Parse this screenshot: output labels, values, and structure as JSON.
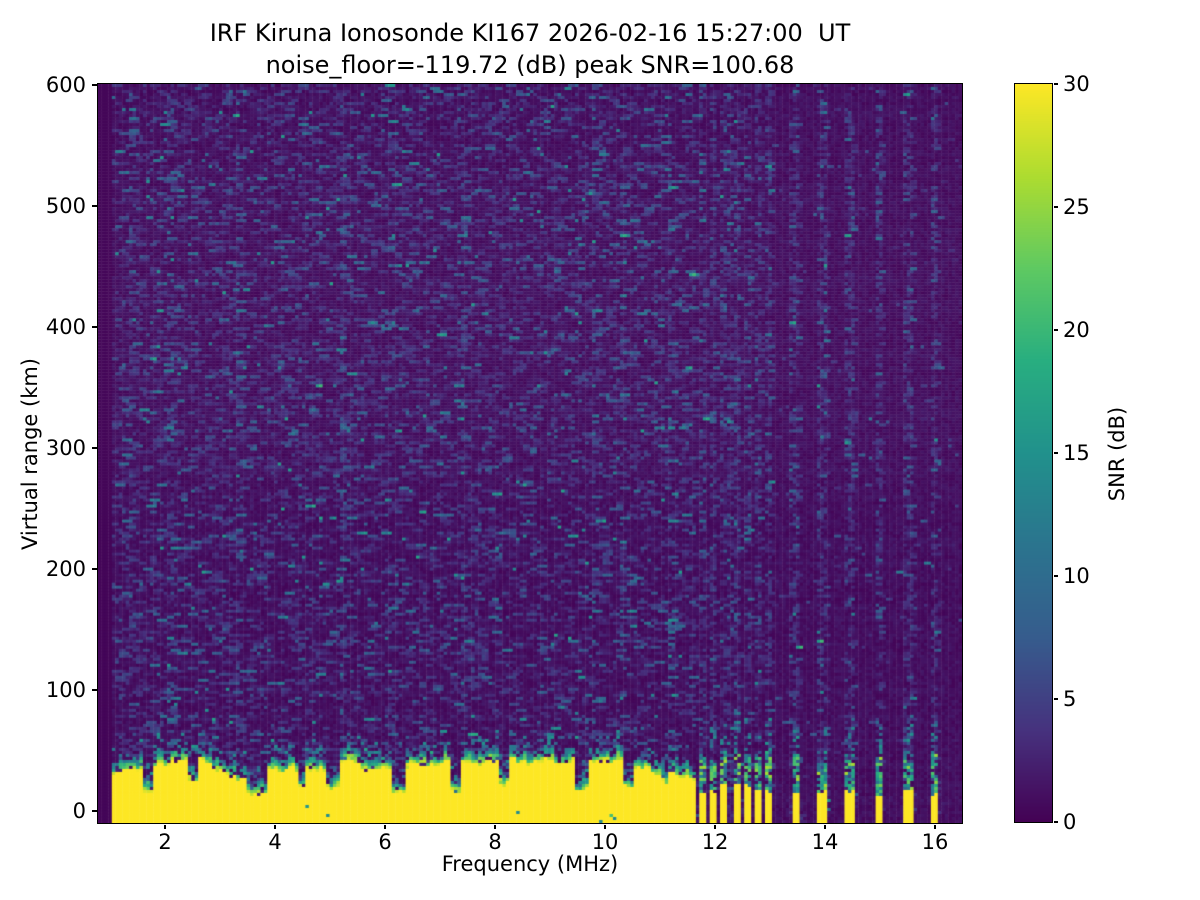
{
  "figure": {
    "title_line1": "IRF Kiruna Ionosonde KI167 2026-02-16 15:27:00  UT",
    "title_line2": "noise_floor=-119.72 (dB) peak SNR=100.68",
    "background": "#ffffff"
  },
  "axes": {
    "xlabel": "Frequency (MHz)",
    "ylabel": "Virtual range (km)",
    "x_ticks": [
      2,
      4,
      6,
      8,
      10,
      12,
      14,
      16
    ],
    "y_ticks": [
      0,
      100,
      200,
      300,
      400,
      500,
      600
    ],
    "xlim": [
      0.78,
      16.49
    ],
    "ylim": [
      -10,
      601
    ]
  },
  "colorbar": {
    "label": "SNR (dB)",
    "ticks": [
      0,
      5,
      10,
      15,
      20,
      25,
      30
    ],
    "min": 0,
    "max": 30
  },
  "chart_data": {
    "type": "heatmap",
    "title": "IRF Kiruna Ionosonde KI167 2026-02-16 15:27:00  UT",
    "subtitle": "noise_floor=-119.72 (dB) peak SNR=100.68",
    "xlabel": "Frequency (MHz)",
    "ylabel": "Virtual range (km)",
    "colorbar_label": "SNR (dB)",
    "xlim": [
      0.78,
      16.49
    ],
    "ylim": [
      -10,
      601
    ],
    "clim": [
      0,
      30
    ],
    "noise_floor_db": -119.72,
    "peak_snr_db": 100.68,
    "colormap": "viridis",
    "viridis_stops": [
      "#440154",
      "#46327e",
      "#365c8d",
      "#2b748e",
      "#21918c",
      "#28ae80",
      "#5ec962",
      "#addc30",
      "#fde725"
    ],
    "regions": {
      "no_data_band": {
        "f_min": 0.78,
        "f_max": 1.04,
        "snr_db": 0
      },
      "continuous_sweep": {
        "f_min": 1.04,
        "f_max": 11.67,
        "background_noise_db": [
          0,
          9
        ],
        "ground_band_snr_db": 30,
        "ground_band_top_km_range": [
          22,
          42
        ],
        "ground_band_fringe_km": 12
      },
      "stepped_sweep": {
        "f_min": 11.67,
        "f_max": 16.49,
        "background_noise_db": [
          0,
          3
        ]
      }
    },
    "ground_band_notches": [
      {
        "f": 1.7,
        "top_km": 12,
        "w": 0.1
      },
      {
        "f": 2.5,
        "top_km": 22,
        "w": 0.08
      },
      {
        "f": 3.6,
        "top_km": 11,
        "w": 0.12
      },
      {
        "f": 3.8,
        "top_km": 13,
        "w": 0.08
      },
      {
        "f": 4.5,
        "top_km": 18,
        "w": 0.08
      },
      {
        "f": 5.05,
        "top_km": 16,
        "w": 0.1
      },
      {
        "f": 6.25,
        "top_km": 12,
        "w": 0.12
      },
      {
        "f": 7.3,
        "top_km": 15,
        "w": 0.1
      },
      {
        "f": 8.15,
        "top_km": 20,
        "w": 0.08
      },
      {
        "f": 9.6,
        "top_km": 14,
        "w": 0.12
      },
      {
        "f": 10.45,
        "top_km": 18,
        "w": 0.1
      },
      {
        "f": 11.1,
        "top_km": 20,
        "w": 0.06
      }
    ],
    "stepped_stripe_frequencies_mhz": [
      11.78,
      11.98,
      12.18,
      12.38,
      12.58,
      12.78,
      12.98,
      13.45,
      13.95,
      14.45,
      15.0,
      15.52,
      16.0
    ],
    "stripe_cluster_max_mhz": 13.1,
    "stripe_yellow_top_km": [
      12,
      22
    ],
    "stripe_teal_top_km": [
      34,
      54
    ],
    "enhanced_noise_columns_mhz": [
      1.35,
      2.1,
      3.3,
      5.2,
      7.4,
      9.8,
      10.3,
      11.2
    ]
  }
}
